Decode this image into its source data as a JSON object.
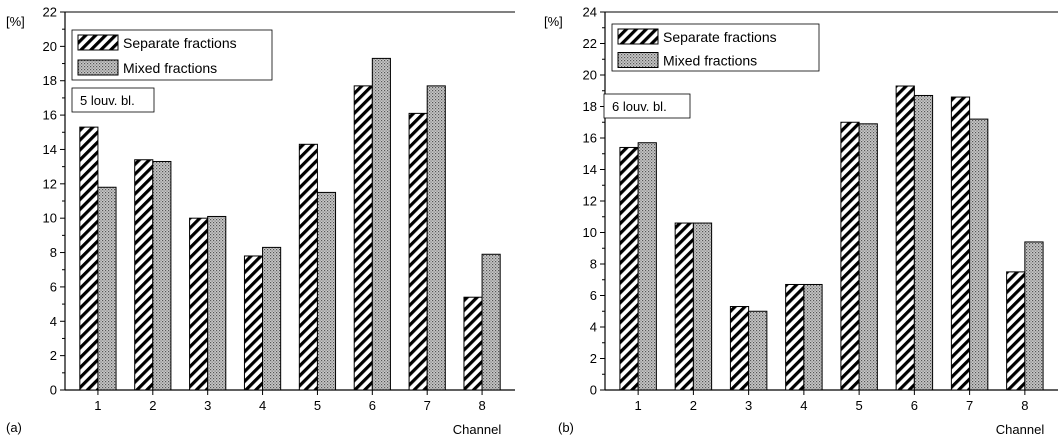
{
  "chart_data": [
    {
      "type": "bar",
      "panel_label": "(a)",
      "annotation": "5 louv. bl.",
      "ylabel": "[%]",
      "xlabel": "Channel",
      "ylim": [
        0,
        22
      ],
      "ytick_step": 2,
      "categories": [
        "1",
        "2",
        "3",
        "4",
        "5",
        "6",
        "7",
        "8"
      ],
      "series": [
        {
          "name": "Separate fractions",
          "values": [
            15.3,
            13.4,
            10.0,
            7.8,
            14.3,
            17.7,
            16.1,
            5.4
          ]
        },
        {
          "name": "Mixed fractions",
          "values": [
            11.8,
            13.3,
            10.1,
            8.3,
            11.5,
            19.3,
            17.7,
            7.9
          ]
        }
      ],
      "grid": false,
      "legend_position": "top-left"
    },
    {
      "type": "bar",
      "panel_label": "(b)",
      "annotation": "6 louv. bl.",
      "ylabel": "[%]",
      "xlabel": "Channel",
      "ylim": [
        0,
        24
      ],
      "ytick_step": 2,
      "categories": [
        "1",
        "2",
        "3",
        "4",
        "5",
        "6",
        "7",
        "8"
      ],
      "series": [
        {
          "name": "Separate fractions",
          "values": [
            15.4,
            10.6,
            5.3,
            6.7,
            17.0,
            19.3,
            18.6,
            7.5
          ]
        },
        {
          "name": "Mixed fractions",
          "values": [
            15.7,
            10.6,
            5.0,
            6.7,
            16.9,
            18.7,
            17.2,
            9.4
          ]
        }
      ],
      "grid": false,
      "legend_position": "top-left"
    }
  ]
}
